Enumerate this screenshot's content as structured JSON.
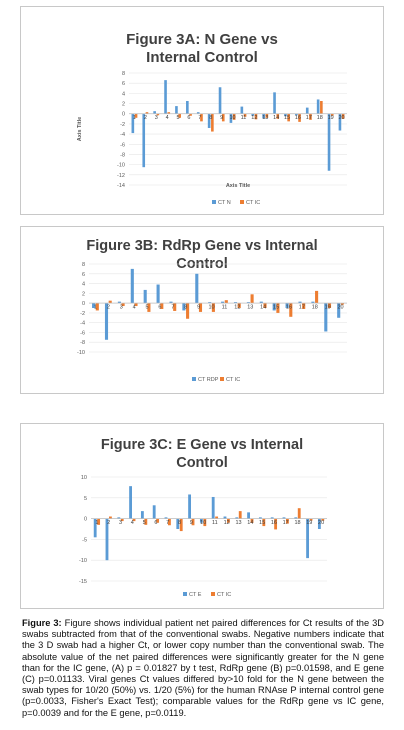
{
  "chart_data": [
    {
      "type": "bar",
      "title_line1": "Figure 3A:  N Gene vs",
      "title_line2": "Internal Control",
      "xlabel": "Axis Title",
      "ylabel": "Axis Title",
      "ylim": [
        -14,
        8
      ],
      "yticks": [
        8,
        6,
        4,
        2,
        0,
        -2,
        -4,
        -6,
        -8,
        -10,
        -12,
        -14
      ],
      "categories": [
        "1",
        "2",
        "3",
        "4",
        "5",
        "6",
        "7",
        "8",
        "9",
        "10",
        "11",
        "12",
        "13",
        "14",
        "15",
        "16",
        "17",
        "18",
        "19",
        "20"
      ],
      "series": [
        {
          "name": "CT N",
          "color": "#5b9bd5",
          "values": [
            -3.8,
            -10.5,
            0.5,
            6.6,
            1.5,
            2.5,
            0.3,
            -2.8,
            5.2,
            -1.8,
            1.4,
            -0.4,
            -0.9,
            4.2,
            -0.5,
            -0.3,
            1.2,
            2.8,
            -11.2,
            -3.3
          ]
        },
        {
          "name": "CT IC",
          "color": "#ed7d31",
          "values": [
            -0.8,
            0.3,
            -0.3,
            0.3,
            -0.8,
            -0.4,
            -1.5,
            -3.5,
            -1.5,
            -1.2,
            -0.6,
            -1.1,
            -0.8,
            -1.0,
            -1.5,
            -1.6,
            -1.2,
            2.5,
            -0.4,
            -1.0
          ]
        }
      ],
      "legend": "bottom",
      "grid": true
    },
    {
      "type": "bar",
      "title_line1": "Figure 3B:  RdRp Gene vs Internal",
      "title_line2": "Control",
      "xlabel": "",
      "ylabel": "",
      "ylim": [
        -10,
        8
      ],
      "yticks": [
        8,
        6,
        4,
        2,
        0,
        -2,
        -4,
        -6,
        -8,
        -10
      ],
      "categories": [
        "1",
        "2",
        "3",
        "4",
        "5",
        "6",
        "7",
        "8",
        "9",
        "10",
        "11",
        "12",
        "13",
        "14",
        "15",
        "16",
        "17",
        "18",
        "19",
        "20"
      ],
      "series": [
        {
          "name": "CT RDP",
          "color": "#5b9bd5",
          "values": [
            -1.0,
            -7.5,
            0.3,
            7.0,
            2.7,
            3.8,
            0.3,
            -1.5,
            6.0,
            0.2,
            0.3,
            0.2,
            0.2,
            0.3,
            -1.5,
            -1.0,
            0.3,
            0.3,
            -5.8,
            -3.0
          ]
        },
        {
          "name": "CT IC",
          "color": "#ed7d31",
          "values": [
            -1.5,
            0.5,
            -0.6,
            -0.6,
            -1.8,
            -1.2,
            -1.6,
            -3.2,
            -1.8,
            -1.8,
            0.6,
            -1.0,
            1.8,
            -1.0,
            -2.0,
            -2.8,
            -1.2,
            2.5,
            -1.0,
            -0.3
          ]
        }
      ],
      "legend": "bottom",
      "grid": true
    },
    {
      "type": "bar",
      "title_line1": "Figure 3C:  E Gene vs Internal",
      "title_line2": "Control",
      "xlabel": "",
      "ylabel": "",
      "ylim": [
        -15,
        10
      ],
      "yticks": [
        10,
        5,
        0,
        -5,
        -10,
        -15
      ],
      "categories": [
        "1",
        "2",
        "3",
        "4",
        "5",
        "6",
        "7",
        "8",
        "9",
        "10",
        "11",
        "12",
        "13",
        "14",
        "15",
        "16",
        "17",
        "18",
        "19",
        "20"
      ],
      "series": [
        {
          "name": "CT E",
          "color": "#5b9bd5",
          "values": [
            -4.5,
            -10.0,
            0.3,
            7.8,
            1.8,
            3.2,
            0.3,
            -2.5,
            5.8,
            -1.0,
            5.2,
            0.5,
            0.3,
            1.5,
            0.3,
            0.3,
            0.3,
            0.3,
            -9.5,
            -2.5
          ]
        },
        {
          "name": "CT IC",
          "color": "#ed7d31",
          "values": [
            -1.5,
            0.5,
            -0.6,
            -0.6,
            -1.5,
            -1.0,
            -1.6,
            -3.0,
            -1.6,
            -1.8,
            0.5,
            -1.0,
            1.8,
            -1.0,
            -1.8,
            -2.6,
            -1.2,
            2.5,
            -0.5,
            -0.5
          ]
        }
      ],
      "legend": "bottom",
      "grid": true
    }
  ],
  "caption": {
    "label": "Figure 3:",
    "text": " Figure shows individual patient net paired differences for Ct results of the 3D swabs subtracted from that of the conventional swabs. Negative numbers indicate that the 3 D swab had a higher Ct, or lower copy number than the conventional swab. The absolute value of the net paired differences were significantly greater for the N gene than for the IC gene, (A) p = 0.01827 by t test, RdRp gene (B) p=0.01598, and E gene (C) p=0.01133. Viral genes Ct values differed by>10 fold for the N gene between the swab types for 10/20 (50%) vs. 1/20 (5%) for the human RNAse P internal control gene (p=0.0033, Fisher's Exact Test); comparable values for the RdRp gene vs IC gene, p=0.0039 and for the E gene, p=0.0119."
  }
}
